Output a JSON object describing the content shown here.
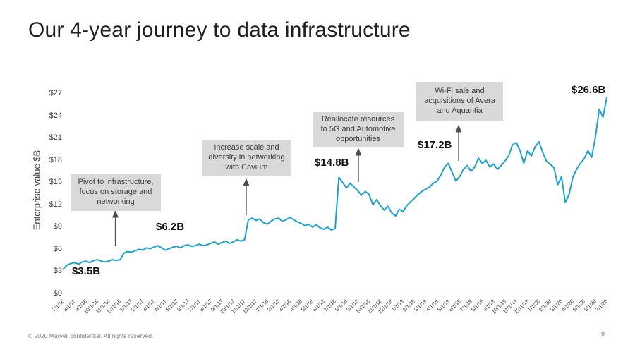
{
  "slide": {
    "title": "Our 4-year journey to data infrastructure",
    "footer": "© 2020 Marvell confidential. All rights reserved.",
    "page_number": "9"
  },
  "chart_data": {
    "type": "line",
    "title": "",
    "xlabel": "",
    "ylabel": "Enterprise value $B",
    "ylim": [
      0,
      27
    ],
    "ytick_step": 3,
    "ytick_labels": [
      "$0",
      "$3",
      "$6",
      "$9",
      "$12",
      "$15",
      "$18",
      "$21",
      "$24",
      "$27"
    ],
    "grid": "baseline-only",
    "legend": "none",
    "x_labels": [
      "7/1/16",
      "8/1/16",
      "9/1/16",
      "10/1/16",
      "11/1/16",
      "12/1/16",
      "1/1/17",
      "2/1/17",
      "3/1/17",
      "4/1/17",
      "5/1/17",
      "6/1/17",
      "7/1/17",
      "8/1/17",
      "9/1/17",
      "10/1/17",
      "11/1/17",
      "12/1/17",
      "1/1/18",
      "2/1/18",
      "3/1/18",
      "4/1/18",
      "5/1/18",
      "6/1/18",
      "7/1/18",
      "8/1/18",
      "9/1/18",
      "10/1/18",
      "11/1/18",
      "12/1/18",
      "1/1/19",
      "2/1/19",
      "3/1/19",
      "4/1/19",
      "5/1/19",
      "6/1/19",
      "7/1/19",
      "8/1/19",
      "9/1/19",
      "10/1/19",
      "11/1/19",
      "12/1/19",
      "1/1/20",
      "2/1/20",
      "3/1/20",
      "4/1/20",
      "5/1/20",
      "6/1/20",
      "7/1/20"
    ],
    "series": [
      {
        "name": "Enterprise value",
        "color": "#1aa3d1",
        "points_per_month": 3,
        "values": [
          3.4,
          3.9,
          4.1,
          4.2,
          4.0,
          4.3,
          4.4,
          4.2,
          4.5,
          4.6,
          4.4,
          4.3,
          4.4,
          4.6,
          4.5,
          4.6,
          5.5,
          5.7,
          5.6,
          5.8,
          6.0,
          5.9,
          6.2,
          6.1,
          6.3,
          6.5,
          6.2,
          5.9,
          6.1,
          6.3,
          6.4,
          6.2,
          6.5,
          6.6,
          6.4,
          6.5,
          6.7,
          6.5,
          6.6,
          6.8,
          7.0,
          6.7,
          6.9,
          7.1,
          6.8,
          7.0,
          7.3,
          7.1,
          7.3,
          10.0,
          10.2,
          9.9,
          10.1,
          9.6,
          9.4,
          9.8,
          10.1,
          10.2,
          9.8,
          10.0,
          10.3,
          10.0,
          9.7,
          9.5,
          9.2,
          9.4,
          9.0,
          9.3,
          8.9,
          8.7,
          9.0,
          8.6,
          8.8,
          15.7,
          15.0,
          14.3,
          14.9,
          14.4,
          13.9,
          13.3,
          13.8,
          13.4,
          12.0,
          12.7,
          11.9,
          11.3,
          11.8,
          10.9,
          10.5,
          11.4,
          11.1,
          11.9,
          12.4,
          12.9,
          13.4,
          13.8,
          14.1,
          14.4,
          14.9,
          15.2,
          16.0,
          17.1,
          17.6,
          16.4,
          15.2,
          15.8,
          16.8,
          17.3,
          16.5,
          17.1,
          18.3,
          17.6,
          18.0,
          17.1,
          17.5,
          16.8,
          17.3,
          17.9,
          18.6,
          20.1,
          20.4,
          19.3,
          17.6,
          19.3,
          18.6,
          19.8,
          20.5,
          19.1,
          17.9,
          17.5,
          17.0,
          14.7,
          15.8,
          12.3,
          13.4,
          15.7,
          16.8,
          17.6,
          18.2,
          19.3,
          18.4,
          21.2,
          24.9,
          23.8,
          26.5
        ]
      }
    ],
    "annotations": {
      "callouts": [
        {
          "text": "Pivot to infrastructure, focus on storage and networking"
        },
        {
          "text": "Increase scale and diversity in networking with Cavium"
        },
        {
          "text": "Reallocate resources to 5G and Automotive opportunities"
        },
        {
          "text": "Wi-Fi sale and acquisitions of Avera and Aquantia"
        }
      ],
      "value_labels": [
        "$3.5B",
        "$6.2B",
        "$14.8B",
        "$17.2B",
        "$26.6B"
      ]
    }
  }
}
